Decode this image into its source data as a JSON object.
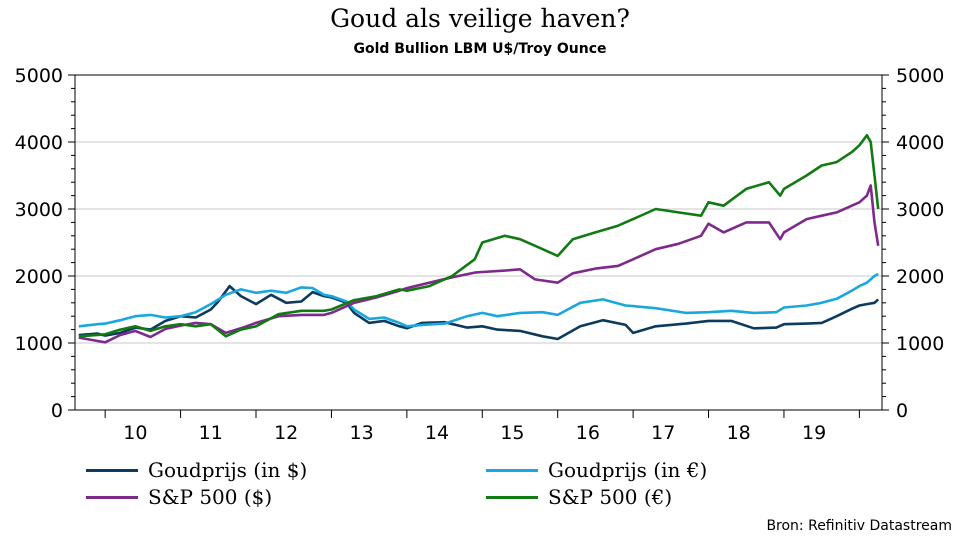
{
  "chart_data": {
    "type": "line",
    "title": "Goud als veilige haven?",
    "subtitle": "Gold Bullion LBM U$/Troy Ounce",
    "x_tick_labels": [
      "10",
      "11",
      "12",
      "13",
      "14",
      "15",
      "16",
      "17",
      "18",
      "19"
    ],
    "x_range": [
      2009.6,
      2020.3
    ],
    "ylim": [
      0,
      5000
    ],
    "y_ticks": [
      0,
      1000,
      2000,
      3000,
      4000,
      5000
    ],
    "grid": true,
    "legend_placement": "bottom",
    "series": [
      {
        "name": "Goudprijs (in $)",
        "color": "#0d3b5e",
        "x": [
          2009.65,
          2009.9,
          2010.0,
          2010.2,
          2010.4,
          2010.6,
          2010.8,
          2011.0,
          2011.2,
          2011.4,
          2011.5,
          2011.65,
          2011.8,
          2011.9,
          2012.0,
          2012.2,
          2012.4,
          2012.6,
          2012.75,
          2012.9,
          2013.0,
          2013.2,
          2013.3,
          2013.5,
          2013.7,
          2013.9,
          2014.0,
          2014.2,
          2014.5,
          2014.8,
          2015.0,
          2015.2,
          2015.5,
          2015.8,
          2016.0,
          2016.3,
          2016.6,
          2016.9,
          2017.0,
          2017.3,
          2017.7,
          2018.0,
          2018.3,
          2018.6,
          2018.9,
          2019.0,
          2019.3,
          2019.5,
          2019.7,
          2019.9,
          2020.0,
          2020.1,
          2020.2,
          2020.25
        ],
        "values": [
          1120,
          1140,
          1110,
          1150,
          1230,
          1200,
          1330,
          1400,
          1380,
          1500,
          1620,
          1850,
          1700,
          1640,
          1580,
          1720,
          1600,
          1620,
          1760,
          1700,
          1680,
          1600,
          1450,
          1300,
          1330,
          1250,
          1220,
          1300,
          1310,
          1230,
          1250,
          1200,
          1180,
          1100,
          1060,
          1250,
          1340,
          1270,
          1150,
          1250,
          1290,
          1330,
          1330,
          1220,
          1230,
          1280,
          1290,
          1300,
          1400,
          1510,
          1560,
          1580,
          1600,
          1650
        ]
      },
      {
        "name": "Goudprijs (in €)",
        "color": "#1aa7de",
        "x": [
          2009.65,
          2009.9,
          2010.0,
          2010.2,
          2010.4,
          2010.6,
          2010.8,
          2011.0,
          2011.2,
          2011.4,
          2011.6,
          2011.8,
          2012.0,
          2012.2,
          2012.4,
          2012.6,
          2012.75,
          2012.9,
          2013.0,
          2013.2,
          2013.3,
          2013.5,
          2013.7,
          2013.9,
          2014.0,
          2014.2,
          2014.5,
          2014.8,
          2015.0,
          2015.2,
          2015.5,
          2015.8,
          2016.0,
          2016.3,
          2016.6,
          2016.9,
          2017.0,
          2017.3,
          2017.7,
          2018.0,
          2018.3,
          2018.6,
          2018.9,
          2019.0,
          2019.3,
          2019.5,
          2019.7,
          2019.9,
          2020.0,
          2020.1,
          2020.2,
          2020.25
        ],
        "values": [
          1250,
          1280,
          1290,
          1340,
          1400,
          1420,
          1380,
          1400,
          1460,
          1580,
          1720,
          1800,
          1750,
          1780,
          1750,
          1830,
          1820,
          1720,
          1700,
          1620,
          1500,
          1360,
          1380,
          1300,
          1250,
          1270,
          1290,
          1400,
          1450,
          1400,
          1450,
          1460,
          1420,
          1600,
          1650,
          1560,
          1550,
          1520,
          1450,
          1460,
          1480,
          1450,
          1460,
          1530,
          1560,
          1600,
          1660,
          1780,
          1850,
          1900,
          2000,
          2030
        ]
      },
      {
        "name": "S&P 500 ($)",
        "color": "#7d2a8c",
        "x": [
          2009.65,
          2009.9,
          2010.0,
          2010.2,
          2010.4,
          2010.6,
          2010.8,
          2011.0,
          2011.2,
          2011.4,
          2011.6,
          2011.8,
          2012.0,
          2012.3,
          2012.6,
          2012.9,
          2013.0,
          2013.3,
          2013.6,
          2013.9,
          2014.0,
          2014.3,
          2014.6,
          2014.9,
          2015.0,
          2015.3,
          2015.5,
          2015.7,
          2016.0,
          2016.2,
          2016.5,
          2016.8,
          2017.0,
          2017.3,
          2017.6,
          2017.9,
          2018.0,
          2018.2,
          2018.5,
          2018.8,
          2018.95,
          2019.0,
          2019.3,
          2019.5,
          2019.7,
          2019.9,
          2020.0,
          2020.1,
          2020.15,
          2020.2,
          2020.25
        ],
        "values": [
          1080,
          1030,
          1010,
          1120,
          1180,
          1090,
          1210,
          1260,
          1300,
          1280,
          1150,
          1220,
          1300,
          1400,
          1420,
          1420,
          1450,
          1600,
          1680,
          1780,
          1820,
          1900,
          1980,
          2050,
          2060,
          2080,
          2100,
          1950,
          1900,
          2040,
          2110,
          2150,
          2250,
          2400,
          2480,
          2600,
          2780,
          2650,
          2800,
          2800,
          2550,
          2650,
          2850,
          2900,
          2950,
          3050,
          3100,
          3200,
          3350,
          2800,
          2450
        ]
      },
      {
        "name": "S&P 500 (€)",
        "color": "#127a12",
        "x": [
          2009.65,
          2009.9,
          2010.0,
          2010.2,
          2010.4,
          2010.6,
          2010.8,
          2011.0,
          2011.2,
          2011.4,
          2011.6,
          2011.8,
          2012.0,
          2012.3,
          2012.6,
          2012.9,
          2013.0,
          2013.3,
          2013.6,
          2013.9,
          2014.0,
          2014.3,
          2014.6,
          2014.9,
          2015.0,
          2015.3,
          2015.5,
          2015.7,
          2016.0,
          2016.2,
          2016.5,
          2016.8,
          2017.0,
          2017.3,
          2017.6,
          2017.9,
          2018.0,
          2018.2,
          2018.5,
          2018.8,
          2018.95,
          2019.0,
          2019.3,
          2019.5,
          2019.7,
          2019.9,
          2020.0,
          2020.1,
          2020.15,
          2020.2,
          2020.25
        ],
        "values": [
          1100,
          1120,
          1130,
          1200,
          1250,
          1180,
          1250,
          1280,
          1250,
          1280,
          1100,
          1200,
          1250,
          1430,
          1480,
          1480,
          1500,
          1640,
          1700,
          1800,
          1780,
          1850,
          2000,
          2250,
          2500,
          2600,
          2550,
          2450,
          2300,
          2550,
          2650,
          2750,
          2850,
          3000,
          2950,
          2900,
          3100,
          3050,
          3300,
          3400,
          3200,
          3300,
          3500,
          3650,
          3700,
          3850,
          3950,
          4100,
          4000,
          3500,
          3000
        ]
      }
    ]
  },
  "source_text": "Bron: Refinitiv Datastream"
}
